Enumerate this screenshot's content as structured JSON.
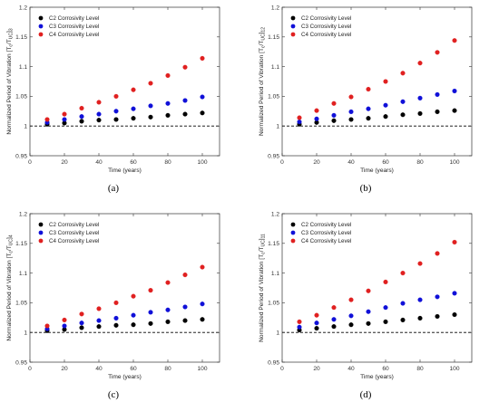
{
  "chart_data": [
    {
      "type": "scatter",
      "panel_label": "(a)",
      "xlabel": "Time (years)",
      "ylabel_main": "Normalized Period of Vibration [T",
      "ylabel_sub1": "c",
      "ylabel_mid": "/T",
      "ylabel_sub2": "UC",
      "ylabel_end": "]",
      "ylabel_index": "3",
      "xlim": [
        0,
        110
      ],
      "ylim": [
        0.95,
        1.2
      ],
      "x_ticks": [
        "0",
        "20",
        "40",
        "60",
        "80",
        "100"
      ],
      "y_ticks": [
        "0.95",
        "1",
        "1.05",
        "1.1",
        "1.15",
        "1.2"
      ],
      "x": [
        10,
        20,
        30,
        40,
        50,
        60,
        70,
        80,
        90,
        100
      ],
      "reference_line_y": 1.0,
      "legend_position": "top-left",
      "series": [
        {
          "name": "C2 Corrosivity Level",
          "color": "#000000",
          "values": [
            1.003,
            1.005,
            1.008,
            1.01,
            1.011,
            1.013,
            1.015,
            1.018,
            1.02,
            1.022
          ]
        },
        {
          "name": "C3 Corrosivity Level",
          "color": "#1010d8",
          "values": [
            1.006,
            1.011,
            1.016,
            1.02,
            1.025,
            1.029,
            1.034,
            1.038,
            1.043,
            1.049
          ]
        },
        {
          "name": "C4 Corrosivity Level",
          "color": "#e02020",
          "values": [
            1.011,
            1.02,
            1.03,
            1.04,
            1.05,
            1.061,
            1.072,
            1.085,
            1.099,
            1.114
          ]
        }
      ]
    },
    {
      "type": "scatter",
      "panel_label": "(b)",
      "xlabel": "Time (years)",
      "ylabel_main": "Normalized Period of Vibration [T",
      "ylabel_sub1": "c",
      "ylabel_mid": "/T",
      "ylabel_sub2": "UC",
      "ylabel_end": "]",
      "ylabel_index": "12",
      "xlim": [
        0,
        110
      ],
      "ylim": [
        0.95,
        1.2
      ],
      "x_ticks": [
        "0",
        "20",
        "40",
        "60",
        "80",
        "100"
      ],
      "y_ticks": [
        "0.95",
        "1",
        "1.05",
        "1.1",
        "1.15",
        "1.2"
      ],
      "x": [
        10,
        20,
        30,
        40,
        50,
        60,
        70,
        80,
        90,
        100
      ],
      "reference_line_y": 1.0,
      "legend_position": "top-left",
      "series": [
        {
          "name": "C2 Corrosivity Level",
          "color": "#000000",
          "values": [
            1.003,
            1.006,
            1.009,
            1.011,
            1.013,
            1.016,
            1.019,
            1.021,
            1.024,
            1.026
          ]
        },
        {
          "name": "C3 Corrosivity Level",
          "color": "#1010d8",
          "values": [
            1.007,
            1.012,
            1.018,
            1.024,
            1.029,
            1.035,
            1.041,
            1.047,
            1.053,
            1.059
          ]
        },
        {
          "name": "C4 Corrosivity Level",
          "color": "#e02020",
          "values": [
            1.014,
            1.026,
            1.038,
            1.049,
            1.062,
            1.075,
            1.089,
            1.106,
            1.124,
            1.144
          ]
        }
      ]
    },
    {
      "type": "scatter",
      "panel_label": "(c)",
      "xlabel": "Time (years)",
      "ylabel_main": "Normalized Period of Vibration [T",
      "ylabel_sub1": "c",
      "ylabel_mid": "/T",
      "ylabel_sub2": "UC",
      "ylabel_end": "]",
      "ylabel_index": "4",
      "xlim": [
        0,
        110
      ],
      "ylim": [
        0.95,
        1.2
      ],
      "x_ticks": [
        "0",
        "20",
        "40",
        "60",
        "80",
        "100"
      ],
      "y_ticks": [
        "0.95",
        "1",
        "1.05",
        "1.1",
        "1.15",
        "1.2"
      ],
      "x": [
        10,
        20,
        30,
        40,
        50,
        60,
        70,
        80,
        90,
        100
      ],
      "reference_line_y": 1.0,
      "legend_position": "top-left",
      "series": [
        {
          "name": "C2 Corrosivity Level",
          "color": "#000000",
          "values": [
            1.003,
            1.005,
            1.008,
            1.01,
            1.012,
            1.013,
            1.015,
            1.018,
            1.02,
            1.022
          ]
        },
        {
          "name": "C3 Corrosivity Level",
          "color": "#1010d8",
          "values": [
            1.006,
            1.011,
            1.016,
            1.02,
            1.024,
            1.029,
            1.034,
            1.038,
            1.043,
            1.048
          ]
        },
        {
          "name": "C4 Corrosivity Level",
          "color": "#e02020",
          "values": [
            1.011,
            1.021,
            1.031,
            1.04,
            1.05,
            1.061,
            1.071,
            1.084,
            1.097,
            1.11
          ]
        }
      ]
    },
    {
      "type": "scatter",
      "panel_label": "(d)",
      "xlabel": "Time (years)",
      "ylabel_main": "Normalized Period of Vibration [T",
      "ylabel_sub1": "c",
      "ylabel_mid": "/T",
      "ylabel_sub2": "UC",
      "ylabel_end": "]",
      "ylabel_index": "11",
      "xlim": [
        0,
        110
      ],
      "ylim": [
        0.95,
        1.2
      ],
      "x_ticks": [
        "0",
        "20",
        "40",
        "60",
        "80",
        "100"
      ],
      "y_ticks": [
        "0.95",
        "1",
        "1.05",
        "1.1",
        "1.15",
        "1.2"
      ],
      "x": [
        10,
        20,
        30,
        40,
        50,
        60,
        70,
        80,
        90,
        100
      ],
      "reference_line_y": 1.0,
      "legend_position": "top-left",
      "series": [
        {
          "name": "C2 Corrosivity Level",
          "color": "#000000",
          "values": [
            1.004,
            1.007,
            1.01,
            1.013,
            1.015,
            1.018,
            1.021,
            1.024,
            1.027,
            1.03
          ]
        },
        {
          "name": "C3 Corrosivity Level",
          "color": "#1010d8",
          "values": [
            1.009,
            1.016,
            1.022,
            1.028,
            1.035,
            1.042,
            1.049,
            1.055,
            1.06,
            1.066
          ]
        },
        {
          "name": "C4 Corrosivity Level",
          "color": "#e02020",
          "values": [
            1.018,
            1.029,
            1.042,
            1.055,
            1.07,
            1.085,
            1.1,
            1.116,
            1.133,
            1.152
          ]
        }
      ]
    }
  ]
}
